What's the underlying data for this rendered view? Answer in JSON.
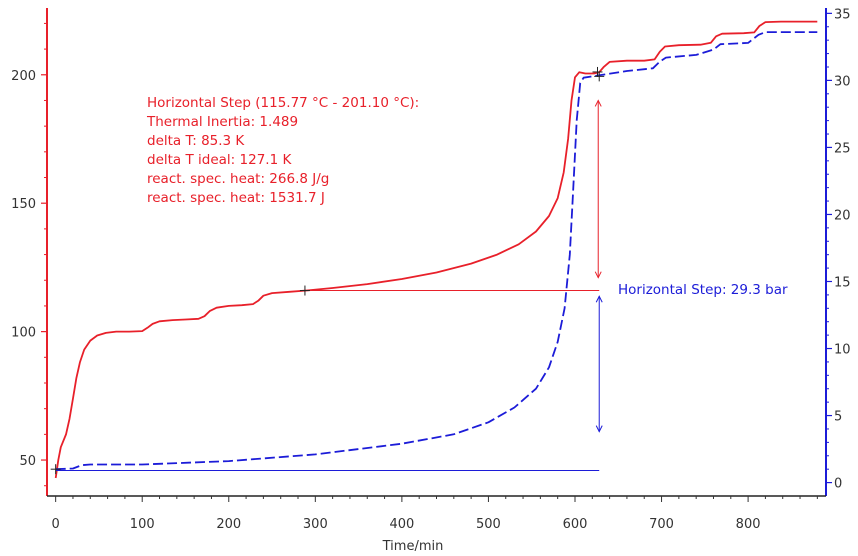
{
  "chart_data": {
    "type": "line",
    "title": "",
    "xlabel": "Time/min",
    "ylabel_left": "",
    "ylabel_right": "",
    "xlim": [
      -10,
      890
    ],
    "ylim_left": [
      36,
      226
    ],
    "ylim_right": [
      -1,
      35.4
    ],
    "x_ticks": [
      0,
      100,
      200,
      300,
      400,
      500,
      600,
      700,
      800
    ],
    "y_left_ticks": [
      50,
      100,
      150,
      200
    ],
    "y_right_ticks": [
      0,
      5,
      10,
      15,
      20,
      25,
      30,
      35
    ],
    "grid": false,
    "colors": {
      "temperature": "#e8202a",
      "pressure": "#1c1cd8",
      "axis_left": "#e8202a",
      "axis_right": "#1c1cd8"
    },
    "series": [
      {
        "axis": "left",
        "style": "solid",
        "color": "#e8202a",
        "points": [
          [
            0,
            43
          ],
          [
            3,
            50
          ],
          [
            6,
            55
          ],
          [
            12,
            60
          ],
          [
            16,
            66
          ],
          [
            20,
            74
          ],
          [
            24,
            82
          ],
          [
            28,
            88
          ],
          [
            33,
            93
          ],
          [
            40,
            96.5
          ],
          [
            48,
            98.5
          ],
          [
            58,
            99.5
          ],
          [
            70,
            100
          ],
          [
            85,
            100
          ],
          [
            100,
            100.2
          ],
          [
            106,
            101.5
          ],
          [
            112,
            103
          ],
          [
            120,
            104
          ],
          [
            135,
            104.5
          ],
          [
            150,
            104.7
          ],
          [
            165,
            105
          ],
          [
            172,
            106
          ],
          [
            178,
            108
          ],
          [
            186,
            109.3
          ],
          [
            200,
            110
          ],
          [
            215,
            110.3
          ],
          [
            228,
            110.7
          ],
          [
            234,
            112
          ],
          [
            240,
            114
          ],
          [
            250,
            115
          ],
          [
            270,
            115.5
          ],
          [
            290,
            116
          ],
          [
            320,
            117
          ],
          [
            360,
            118.5
          ],
          [
            400,
            120.5
          ],
          [
            440,
            123
          ],
          [
            480,
            126.5
          ],
          [
            510,
            130
          ],
          [
            535,
            134
          ],
          [
            555,
            139
          ],
          [
            570,
            145
          ],
          [
            580,
            152
          ],
          [
            587,
            162
          ],
          [
            592,
            175
          ],
          [
            596,
            190
          ],
          [
            600,
            199
          ],
          [
            605,
            201
          ],
          [
            612,
            200.5
          ],
          [
            622,
            200.5
          ],
          [
            628,
            201
          ],
          [
            633,
            203
          ],
          [
            640,
            205
          ],
          [
            660,
            205.5
          ],
          [
            680,
            205.5
          ],
          [
            692,
            206
          ],
          [
            698,
            209
          ],
          [
            704,
            211
          ],
          [
            720,
            211.5
          ],
          [
            745,
            211.7
          ],
          [
            757,
            212.5
          ],
          [
            763,
            215
          ],
          [
            770,
            216
          ],
          [
            795,
            216.2
          ],
          [
            807,
            216.5
          ],
          [
            813,
            219
          ],
          [
            820,
            220.5
          ],
          [
            838,
            220.7
          ],
          [
            850,
            220.7
          ],
          [
            880,
            220.7
          ]
        ]
      },
      {
        "axis": "right",
        "style": "dashed",
        "color": "#1c1cd8",
        "points": [
          [
            0,
            1
          ],
          [
            20,
            1.05
          ],
          [
            30,
            1.3
          ],
          [
            40,
            1.35
          ],
          [
            100,
            1.35
          ],
          [
            200,
            1.6
          ],
          [
            300,
            2.1
          ],
          [
            400,
            2.9
          ],
          [
            460,
            3.6
          ],
          [
            500,
            4.5
          ],
          [
            530,
            5.6
          ],
          [
            555,
            7
          ],
          [
            570,
            8.6
          ],
          [
            580,
            10.5
          ],
          [
            588,
            13
          ],
          [
            594,
            17
          ],
          [
            598,
            22
          ],
          [
            602,
            27
          ],
          [
            606,
            29.8
          ],
          [
            610,
            30.2
          ],
          [
            620,
            30.3
          ],
          [
            630,
            30.4
          ],
          [
            660,
            30.7
          ],
          [
            690,
            30.9
          ],
          [
            698,
            31.4
          ],
          [
            705,
            31.7
          ],
          [
            740,
            31.9
          ],
          [
            760,
            32.3
          ],
          [
            768,
            32.7
          ],
          [
            800,
            32.8
          ],
          [
            812,
            33.4
          ],
          [
            820,
            33.6
          ],
          [
            880,
            33.6
          ]
        ]
      }
    ],
    "annotations": {
      "temp_step_markers": [
        [
          288,
          116
        ],
        [
          626,
          201.1
        ]
      ],
      "pressure_step_markers": [
        [
          0,
          1
        ],
        [
          628,
          30.3
        ]
      ],
      "temp_step_lines": {
        "horizontal_y": 116,
        "x_from": 288,
        "x_to": 628,
        "vertical_x": 628,
        "arrow_y_from": 121,
        "arrow_y_to": 190
      },
      "pressure_step_lines": {
        "horizontal_y": 0.9,
        "x_from": 0,
        "x_to": 628,
        "vertical_x": 628,
        "arrow_y_from": 3.8,
        "arrow_y_to": 13.9
      }
    },
    "red_annotation_lines": [
      "Horizontal Step (115.77 °C - 201.10 °C):",
      "Thermal Inertia: 1.489",
      "delta T: 85.3 K",
      "delta T ideal: 127.1 K",
      "react. spec. heat: 266.8 J/g",
      "react. spec. heat: 1531.7 J"
    ],
    "blue_annotation": "Horizontal Step: 29.3 bar"
  }
}
